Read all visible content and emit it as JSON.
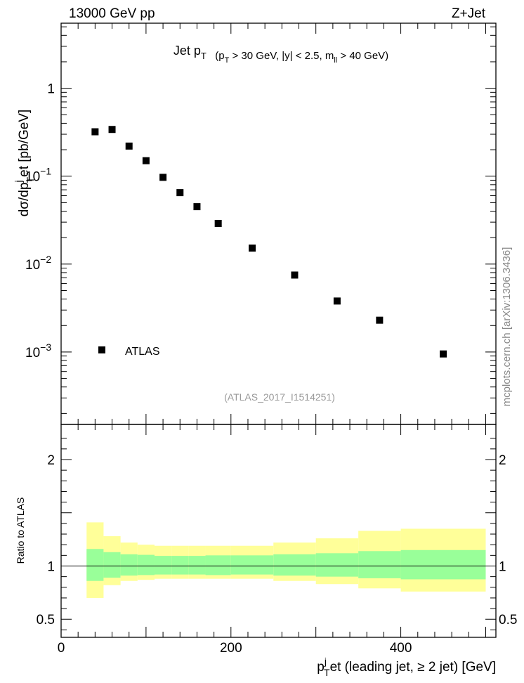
{
  "header": {
    "left": "13000 GeV pp",
    "right": "Z+Jet"
  },
  "watermark": "mcplots.cern.ch [arXiv:1306.3436]",
  "chart_data": [
    {
      "type": "scatter",
      "panel": "main",
      "title_main": "Jet p",
      "title_main_sub": "T",
      "title_cuts": [
        {
          "t": "(p",
          "s": false
        },
        {
          "t": "T",
          "s": true
        },
        {
          "t": " > 30 GeV, |y| < 2.5, m",
          "s": false
        },
        {
          "t": "ll",
          "s": true
        },
        {
          "t": " > 40 GeV)",
          "s": false
        }
      ],
      "ylabel": "dσ/dp",
      "ylabel_sub": "T",
      "ylabel_sup": "j",
      "ylabel_tail": "et [pb/GeV]",
      "yscale": "log",
      "xlim": [
        0,
        512
      ],
      "ylim": [
        0.00015,
        5.5
      ],
      "yticks": [
        {
          "v": 1,
          "label": "1"
        },
        {
          "v": 0.1,
          "label": "10",
          "exp": "−1"
        },
        {
          "v": 0.01,
          "label": "10",
          "exp": "−2"
        },
        {
          "v": 0.001,
          "label": "10",
          "exp": "−3"
        }
      ],
      "legend": [
        {
          "name": "ATLAS",
          "marker": "square",
          "color": "#000000"
        }
      ],
      "annotation": "(ATLAS_2017_I1514251)",
      "series": [
        {
          "name": "ATLAS",
          "x": [
            40,
            60,
            80,
            100,
            120,
            140,
            160,
            185,
            225,
            275,
            325,
            375,
            450
          ],
          "y": [
            0.32,
            0.34,
            0.22,
            0.15,
            0.097,
            0.065,
            0.045,
            0.029,
            0.0152,
            0.0075,
            0.0038,
            0.0023,
            0.00095
          ]
        }
      ]
    },
    {
      "type": "area",
      "panel": "ratio",
      "ylabel": "Ratio to ATLAS",
      "xlabel": "p",
      "xlabel_sub": "T",
      "xlabel_sup": "j",
      "xlabel_tail": "et (leading jet, ≥ 2 jet) [GeV]",
      "xlim": [
        0,
        512
      ],
      "ylim": [
        0.33,
        2.33
      ],
      "xticks": [
        {
          "v": 0,
          "label": "0"
        },
        {
          "v": 200,
          "label": "200"
        },
        {
          "v": 400,
          "label": "400"
        }
      ],
      "yticks": [
        {
          "v": 0.5,
          "label": "0.5"
        },
        {
          "v": 1,
          "label": "1"
        },
        {
          "v": 2,
          "label": "2"
        }
      ],
      "reference_line": 1,
      "bands": {
        "bins": [
          [
            30,
            50
          ],
          [
            50,
            70
          ],
          [
            70,
            90
          ],
          [
            90,
            110
          ],
          [
            110,
            130
          ],
          [
            130,
            150
          ],
          [
            150,
            170
          ],
          [
            170,
            200
          ],
          [
            200,
            250
          ],
          [
            250,
            300
          ],
          [
            300,
            350
          ],
          [
            350,
            400
          ],
          [
            400,
            500
          ]
        ],
        "inner": [
          [
            0.86,
            1.16
          ],
          [
            0.89,
            1.13
          ],
          [
            0.91,
            1.11
          ],
          [
            0.915,
            1.105
          ],
          [
            0.92,
            1.095
          ],
          [
            0.92,
            1.095
          ],
          [
            0.92,
            1.095
          ],
          [
            0.915,
            1.1
          ],
          [
            0.92,
            1.1
          ],
          [
            0.91,
            1.11
          ],
          [
            0.9,
            1.12
          ],
          [
            0.885,
            1.14
          ],
          [
            0.875,
            1.15
          ]
        ],
        "outer": [
          [
            0.7,
            1.41
          ],
          [
            0.82,
            1.28
          ],
          [
            0.86,
            1.22
          ],
          [
            0.87,
            1.2
          ],
          [
            0.88,
            1.19
          ],
          [
            0.88,
            1.19
          ],
          [
            0.88,
            1.19
          ],
          [
            0.88,
            1.19
          ],
          [
            0.88,
            1.19
          ],
          [
            0.86,
            1.22
          ],
          [
            0.83,
            1.26
          ],
          [
            0.79,
            1.33
          ],
          [
            0.76,
            1.35
          ]
        ],
        "inner_color": "#99ff99",
        "outer_color": "#ffff99"
      }
    }
  ]
}
